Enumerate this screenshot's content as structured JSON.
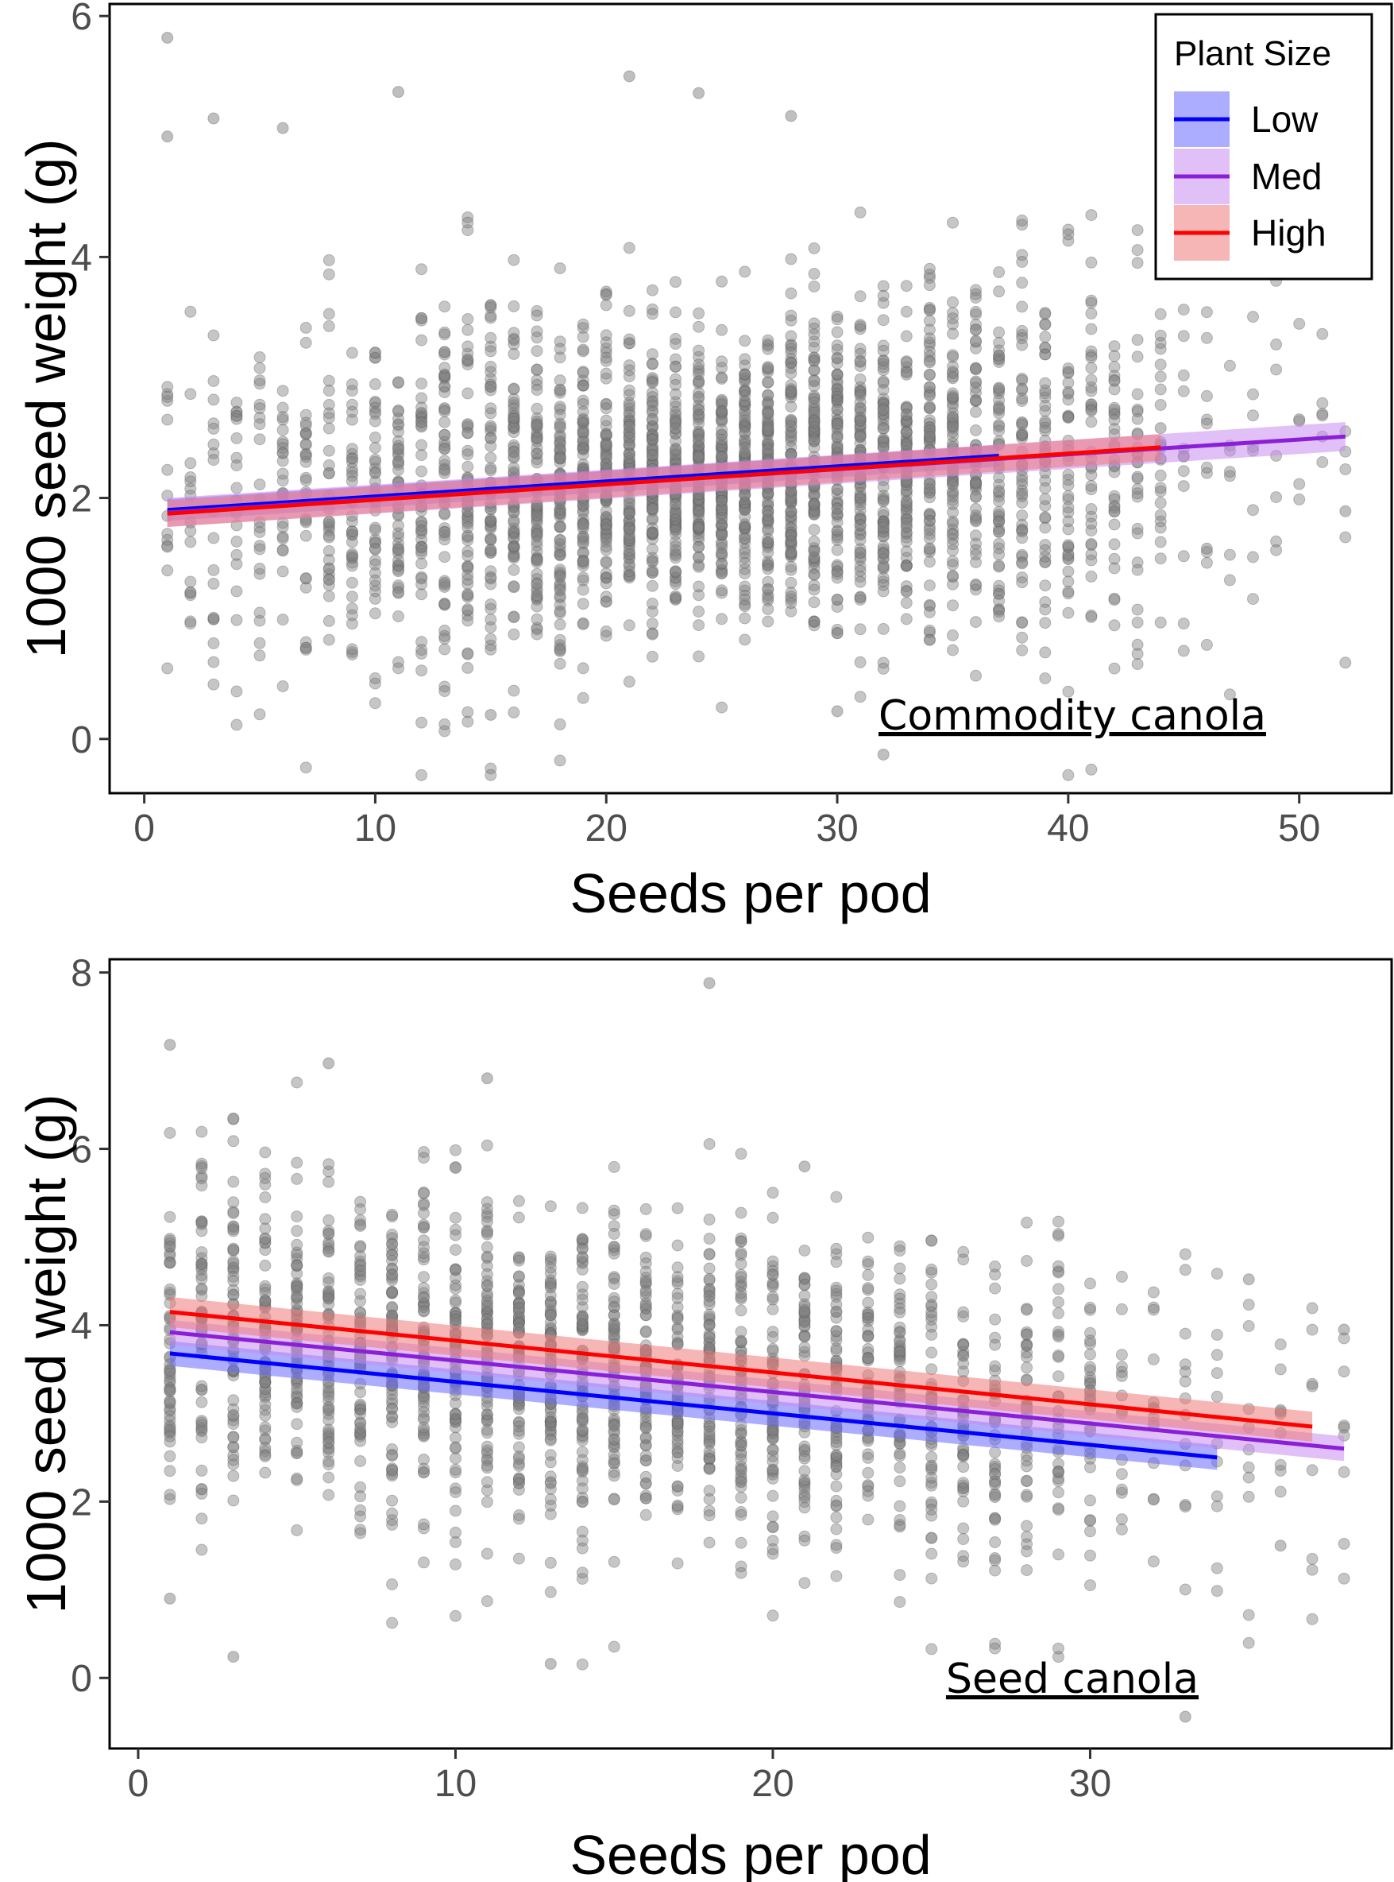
{
  "chart_data": [
    {
      "type": "scatter",
      "panel_label": "Commodity canola",
      "xlabel": "Seeds per pod",
      "ylabel": "1000 seed weight (g)",
      "xlim": [
        -1.5,
        54
      ],
      "ylim": [
        -0.45,
        6.1
      ],
      "x_ticks": [
        0,
        10,
        20,
        30,
        40,
        50
      ],
      "y_ticks": [
        0,
        2,
        4,
        6
      ],
      "grid": false,
      "legend": {
        "title": "Plant Size",
        "position": "top-right",
        "entries": [
          "Low",
          "Med",
          "High"
        ]
      },
      "points": {
        "color": "#808080",
        "x_range": [
          1,
          52
        ],
        "dense_center": 25,
        "mean_line": {
          "x1": 1,
          "y1": 1.88,
          "x2": 52,
          "y2": 2.51
        },
        "spread_sd": 0.62,
        "notable_points": [
          {
            "x": 1,
            "y": 5.82
          },
          {
            "x": 1,
            "y": 5.0
          },
          {
            "x": 3,
            "y": 5.15
          },
          {
            "x": 6,
            "y": 5.07
          },
          {
            "x": 11,
            "y": 5.37
          },
          {
            "x": 21,
            "y": 5.5
          },
          {
            "x": 24,
            "y": 5.36
          },
          {
            "x": 28,
            "y": 5.17
          },
          {
            "x": 45,
            "y": 4.5
          },
          {
            "x": 46,
            "y": 1.58
          },
          {
            "x": 52,
            "y": 1.89
          },
          {
            "x": 30,
            "y": 0.23
          },
          {
            "x": 32,
            "y": -0.13
          },
          {
            "x": 15,
            "y": 0.2
          },
          {
            "x": 44,
            "y": 2.58
          }
        ]
      },
      "series": [
        {
          "name": "Low",
          "color": "#0000ff",
          "band_color": "#6a6aff",
          "x": [
            1,
            37
          ],
          "fit": [
            1.9,
            2.35
          ],
          "ci": 0.09
        },
        {
          "name": "Med",
          "color": "#8b1fd8",
          "band_color": "#c98af0",
          "x": [
            1,
            52
          ],
          "fit": [
            1.88,
            2.51
          ],
          "ci": 0.12
        },
        {
          "name": "High",
          "color": "#ff0000",
          "band_color": "#f07a7a",
          "x": [
            1,
            44
          ],
          "fit": [
            1.87,
            2.42
          ],
          "ci": 0.11
        }
      ]
    },
    {
      "type": "scatter",
      "panel_label": "Seed canola",
      "xlabel": "Seeds per pod",
      "ylabel": "1000 seed weight (g)",
      "xlim": [
        -0.9,
        39.5
      ],
      "ylim": [
        -0.8,
        8.15
      ],
      "x_ticks": [
        0,
        10,
        20,
        30
      ],
      "y_ticks": [
        0,
        2,
        4,
        6,
        8
      ],
      "grid": false,
      "points": {
        "color": "#808080",
        "x_range": [
          1,
          38
        ],
        "dense_center": 12,
        "mean_line": {
          "x1": 1,
          "y1": 3.95,
          "x2": 38,
          "y2": 2.6
        },
        "spread_sd": 0.95,
        "notable_points": [
          {
            "x": 1,
            "y": 7.18
          },
          {
            "x": 6,
            "y": 6.97
          },
          {
            "x": 11,
            "y": 6.8
          },
          {
            "x": 18,
            "y": 7.88
          },
          {
            "x": 3,
            "y": 0.24
          },
          {
            "x": 13,
            "y": 0.16
          },
          {
            "x": 33,
            "y": -0.44
          },
          {
            "x": 36,
            "y": 1.5
          },
          {
            "x": 38,
            "y": 3.95
          },
          {
            "x": 35,
            "y": 4.52
          },
          {
            "x": 1,
            "y": 0.9
          },
          {
            "x": 21,
            "y": 5.8
          }
        ]
      },
      "series": [
        {
          "name": "Low",
          "color": "#0000ff",
          "band_color": "#6a6aff",
          "x": [
            1,
            34
          ],
          "fit": [
            3.68,
            2.5
          ],
          "ci": 0.14
        },
        {
          "name": "Med",
          "color": "#8b1fd8",
          "band_color": "#c98af0",
          "x": [
            1,
            38
          ],
          "fit": [
            3.92,
            2.6
          ],
          "ci": 0.14
        },
        {
          "name": "High",
          "color": "#ff0000",
          "band_color": "#f07a7a",
          "x": [
            1,
            37
          ],
          "fit": [
            4.15,
            2.85
          ],
          "ci": 0.17
        }
      ]
    }
  ]
}
